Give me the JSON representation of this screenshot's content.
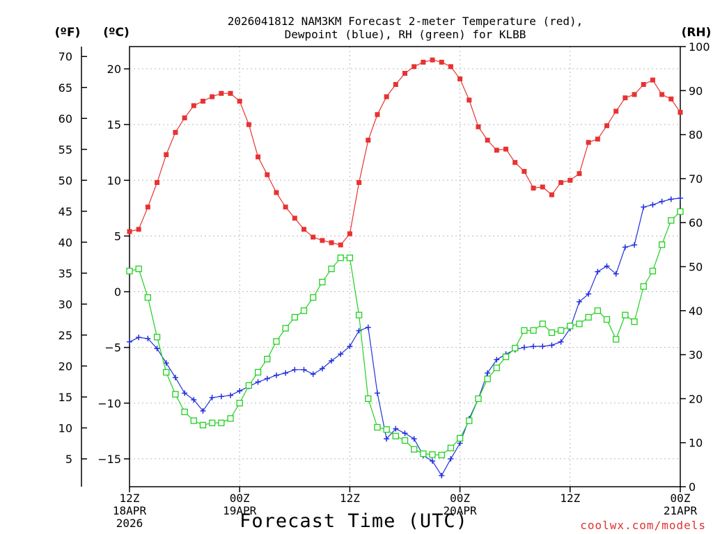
{
  "chart_data": {
    "type": "line",
    "title": [
      "2026041812 NAM3KM Forecast 2-meter Temperature (red),",
      "Dewpoint (blue), RH (green) for KLBB"
    ],
    "xlabel": "Forecast Time (UTC)",
    "credit": "coolwx.com/models",
    "units": {
      "fahrenheit": "(ºF)",
      "celsius": "(ºC)",
      "rh": "(RH)"
    },
    "x_range_hours": [
      0,
      60
    ],
    "x_ticks": [
      {
        "hour": 0,
        "lines": [
          "12Z",
          "18APR",
          "2026"
        ]
      },
      {
        "hour": 12,
        "lines": [
          "00Z",
          "19APR"
        ]
      },
      {
        "hour": 24,
        "lines": [
          "12Z"
        ]
      },
      {
        "hour": 36,
        "lines": [
          "00Z",
          "20APR"
        ]
      },
      {
        "hour": 48,
        "lines": [
          "12Z"
        ]
      },
      {
        "hour": 60,
        "lines": [
          "00Z",
          "21APR"
        ]
      }
    ],
    "ylim_celsius": [
      -17.5,
      22
    ],
    "celsius_ticks": [
      20,
      15,
      10,
      5,
      0,
      -5,
      -10,
      -15
    ],
    "fahrenheit_ticks": [
      70,
      65,
      60,
      55,
      50,
      45,
      40,
      35,
      30,
      25,
      20,
      15,
      10,
      5
    ],
    "ylim_rh": [
      0,
      100
    ],
    "rh_ticks": [
      100,
      90,
      80,
      70,
      60,
      50,
      40,
      30,
      20,
      10,
      0
    ],
    "hours": [
      0,
      1,
      2,
      3,
      4,
      5,
      6,
      7,
      8,
      9,
      10,
      11,
      12,
      13,
      14,
      15,
      16,
      17,
      18,
      19,
      20,
      21,
      22,
      23,
      24,
      25,
      26,
      27,
      28,
      29,
      30,
      31,
      32,
      33,
      34,
      35,
      36,
      37,
      38,
      39,
      40,
      41,
      42,
      43,
      44,
      45,
      46,
      47,
      48,
      49,
      50,
      51,
      52,
      53,
      54,
      55,
      56,
      57,
      58,
      59,
      60
    ],
    "series": [
      {
        "name": "2-meter Temperature",
        "unit": "C",
        "color": "#e83232",
        "marker": "filled-square",
        "values": [
          5.4,
          5.6,
          7.6,
          9.8,
          12.3,
          14.3,
          15.6,
          16.7,
          17.1,
          17.5,
          17.8,
          17.8,
          17.1,
          15,
          12.1,
          10.5,
          8.9,
          7.6,
          6.6,
          5.6,
          4.9,
          4.6,
          4.4,
          4.2,
          5.2,
          9.8,
          13.6,
          15.9,
          17.5,
          18.6,
          19.6,
          20.2,
          20.6,
          20.8,
          20.6,
          20.2,
          19.1,
          17.2,
          14.8,
          13.6,
          12.7,
          12.8,
          11.6,
          10.8,
          9.3,
          9.4,
          8.7,
          9.8,
          10,
          10.6,
          13.4,
          13.7,
          14.9,
          16.2,
          17.4,
          17.7,
          18.6,
          19,
          17.7,
          17.3,
          16.1
        ]
      },
      {
        "name": "Dewpoint",
        "unit": "C",
        "color": "#2030dc",
        "marker": "plus",
        "values": [
          -4.5,
          -4.1,
          -4.2,
          -5.1,
          -6.4,
          -7.7,
          -9.1,
          -9.7,
          -10.7,
          -9.5,
          -9.4,
          -9.3,
          -8.9,
          -8.5,
          -8.1,
          -7.8,
          -7.5,
          -7.3,
          -7,
          -7,
          -7.4,
          -6.9,
          -6.2,
          -5.6,
          -4.9,
          -3.5,
          -3.2,
          -9.1,
          -13.2,
          -12.3,
          -12.7,
          -13.2,
          -14.7,
          -15.2,
          -16.5,
          -15,
          -13.6,
          -11.4,
          -9.6,
          -7.3,
          -6.1,
          -5.6,
          -5.2,
          -5,
          -4.9,
          -4.9,
          -4.8,
          -4.5,
          -3.3,
          -0.9,
          -0.2,
          1.8,
          2.3,
          1.6,
          4.0,
          4.2,
          7.6,
          7.8,
          8.1,
          8.3,
          8.4
        ]
      },
      {
        "name": "RH",
        "unit": "%",
        "color": "#1fd01f",
        "marker": "open-square",
        "values": [
          49,
          49.5,
          43,
          34,
          26,
          21,
          17,
          15,
          14,
          14.5,
          14.5,
          15.5,
          19,
          23,
          26,
          29,
          33,
          36,
          38.5,
          40,
          43,
          46.5,
          49.5,
          52,
          52,
          39,
          20,
          13.5,
          13,
          11.5,
          10.5,
          8.5,
          7.5,
          7.3,
          7.2,
          8.8,
          11,
          15,
          20,
          24.5,
          27,
          29.5,
          31.5,
          35.5,
          35.5,
          37,
          35,
          35.5,
          36.5,
          37,
          38.5,
          40,
          38,
          33.5,
          39,
          37.5,
          45.5,
          49,
          55,
          60.5,
          62.5
        ]
      }
    ]
  }
}
